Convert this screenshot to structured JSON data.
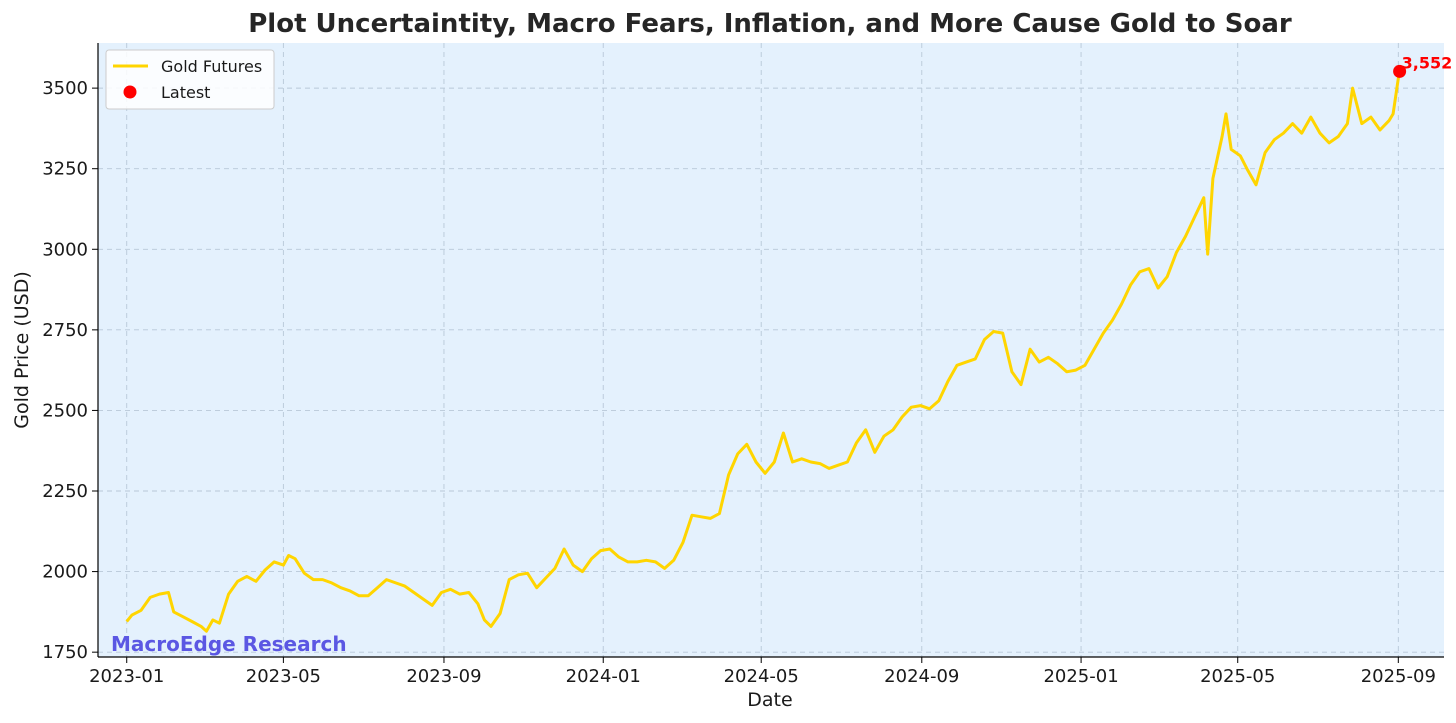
{
  "chart_data": {
    "type": "line",
    "title": "Plot Uncertaintity, Macro Fears, Inflation, and More Cause Gold to Soar",
    "xlabel": "Date",
    "ylabel": "Gold Price (USD)",
    "x_ticks": [
      "2023-01",
      "2023-05",
      "2023-09",
      "2024-01",
      "2024-05",
      "2024-09",
      "2025-01",
      "2025-05",
      "2025-09"
    ],
    "y_ticks": [
      1750,
      2000,
      2250,
      2500,
      2750,
      3000,
      3250,
      3500
    ],
    "xlim": [
      "2022-12-10",
      "2025-10-06"
    ],
    "ylim": [
      1735,
      3640
    ],
    "grid": true,
    "legend_position": "top-left",
    "watermark": "MacroEdge Research",
    "series": [
      {
        "name": "Gold Futures",
        "color": "#FFD500",
        "points": [
          [
            "2023-01-01",
            1845
          ],
          [
            "2023-01-05",
            1865
          ],
          [
            "2023-01-12",
            1880
          ],
          [
            "2023-01-19",
            1920
          ],
          [
            "2023-01-26",
            1930
          ],
          [
            "2023-02-02",
            1935
          ],
          [
            "2023-02-06",
            1875
          ],
          [
            "2023-02-13",
            1860
          ],
          [
            "2023-02-20",
            1845
          ],
          [
            "2023-02-27",
            1830
          ],
          [
            "2023-03-03",
            1815
          ],
          [
            "2023-03-08",
            1850
          ],
          [
            "2023-03-13",
            1840
          ],
          [
            "2023-03-20",
            1930
          ],
          [
            "2023-03-27",
            1970
          ],
          [
            "2023-04-03",
            1985
          ],
          [
            "2023-04-10",
            1970
          ],
          [
            "2023-04-17",
            2005
          ],
          [
            "2023-04-24",
            2030
          ],
          [
            "2023-05-01",
            2020
          ],
          [
            "2023-05-05",
            2050
          ],
          [
            "2023-05-10",
            2040
          ],
          [
            "2023-05-17",
            1995
          ],
          [
            "2023-05-24",
            1975
          ],
          [
            "2023-05-31",
            1975
          ],
          [
            "2023-06-07",
            1965
          ],
          [
            "2023-06-14",
            1950
          ],
          [
            "2023-06-21",
            1940
          ],
          [
            "2023-06-28",
            1925
          ],
          [
            "2023-07-05",
            1925
          ],
          [
            "2023-07-12",
            1950
          ],
          [
            "2023-07-19",
            1975
          ],
          [
            "2023-07-26",
            1965
          ],
          [
            "2023-08-02",
            1955
          ],
          [
            "2023-08-09",
            1935
          ],
          [
            "2023-08-16",
            1915
          ],
          [
            "2023-08-23",
            1895
          ],
          [
            "2023-08-30",
            1935
          ],
          [
            "2023-09-06",
            1945
          ],
          [
            "2023-09-13",
            1930
          ],
          [
            "2023-09-20",
            1935
          ],
          [
            "2023-09-27",
            1900
          ],
          [
            "2023-10-02",
            1850
          ],
          [
            "2023-10-07",
            1830
          ],
          [
            "2023-10-14",
            1870
          ],
          [
            "2023-10-21",
            1975
          ],
          [
            "2023-10-28",
            1990
          ],
          [
            "2023-11-04",
            1995
          ],
          [
            "2023-11-11",
            1950
          ],
          [
            "2023-11-18",
            1980
          ],
          [
            "2023-11-25",
            2010
          ],
          [
            "2023-12-02",
            2070
          ],
          [
            "2023-12-09",
            2020
          ],
          [
            "2023-12-16",
            2000
          ],
          [
            "2023-12-23",
            2040
          ],
          [
            "2023-12-30",
            2065
          ],
          [
            "2024-01-06",
            2070
          ],
          [
            "2024-01-13",
            2045
          ],
          [
            "2024-01-20",
            2030
          ],
          [
            "2024-01-27",
            2030
          ],
          [
            "2024-02-03",
            2035
          ],
          [
            "2024-02-10",
            2030
          ],
          [
            "2024-02-17",
            2010
          ],
          [
            "2024-02-24",
            2035
          ],
          [
            "2024-03-02",
            2090
          ],
          [
            "2024-03-09",
            2175
          ],
          [
            "2024-03-16",
            2170
          ],
          [
            "2024-03-23",
            2165
          ],
          [
            "2024-03-30",
            2180
          ],
          [
            "2024-04-06",
            2300
          ],
          [
            "2024-04-13",
            2365
          ],
          [
            "2024-04-20",
            2395
          ],
          [
            "2024-04-27",
            2340
          ],
          [
            "2024-05-04",
            2305
          ],
          [
            "2024-05-11",
            2340
          ],
          [
            "2024-05-18",
            2430
          ],
          [
            "2024-05-25",
            2340
          ],
          [
            "2024-06-01",
            2350
          ],
          [
            "2024-06-08",
            2340
          ],
          [
            "2024-06-15",
            2335
          ],
          [
            "2024-06-22",
            2320
          ],
          [
            "2024-06-29",
            2330
          ],
          [
            "2024-07-06",
            2340
          ],
          [
            "2024-07-13",
            2400
          ],
          [
            "2024-07-20",
            2440
          ],
          [
            "2024-07-27",
            2370
          ],
          [
            "2024-08-03",
            2420
          ],
          [
            "2024-08-10",
            2440
          ],
          [
            "2024-08-17",
            2480
          ],
          [
            "2024-08-24",
            2510
          ],
          [
            "2024-08-31",
            2515
          ],
          [
            "2024-09-07",
            2505
          ],
          [
            "2024-09-14",
            2530
          ],
          [
            "2024-09-21",
            2590
          ],
          [
            "2024-09-28",
            2640
          ],
          [
            "2024-10-05",
            2650
          ],
          [
            "2024-10-12",
            2660
          ],
          [
            "2024-10-19",
            2720
          ],
          [
            "2024-10-26",
            2745
          ],
          [
            "2024-11-02",
            2740
          ],
          [
            "2024-11-09",
            2620
          ],
          [
            "2024-11-16",
            2580
          ],
          [
            "2024-11-23",
            2690
          ],
          [
            "2024-11-30",
            2650
          ],
          [
            "2024-12-07",
            2665
          ],
          [
            "2024-12-14",
            2645
          ],
          [
            "2024-12-21",
            2620
          ],
          [
            "2024-12-28",
            2625
          ],
          [
            "2025-01-04",
            2640
          ],
          [
            "2025-01-11",
            2690
          ],
          [
            "2025-01-18",
            2740
          ],
          [
            "2025-01-25",
            2780
          ],
          [
            "2025-02-01",
            2830
          ],
          [
            "2025-02-08",
            2890
          ],
          [
            "2025-02-15",
            2930
          ],
          [
            "2025-02-22",
            2940
          ],
          [
            "2025-03-01",
            2880
          ],
          [
            "2025-03-08",
            2915
          ],
          [
            "2025-03-15",
            2990
          ],
          [
            "2025-03-22",
            3040
          ],
          [
            "2025-03-29",
            3100
          ],
          [
            "2025-04-05",
            3160
          ],
          [
            "2025-04-08",
            2985
          ],
          [
            "2025-04-12",
            3220
          ],
          [
            "2025-04-19",
            3350
          ],
          [
            "2025-04-22",
            3420
          ],
          [
            "2025-04-26",
            3310
          ],
          [
            "2025-05-03",
            3290
          ],
          [
            "2025-05-08",
            3250
          ],
          [
            "2025-05-15",
            3200
          ],
          [
            "2025-05-22",
            3300
          ],
          [
            "2025-05-29",
            3340
          ],
          [
            "2025-06-05",
            3360
          ],
          [
            "2025-06-12",
            3390
          ],
          [
            "2025-06-19",
            3360
          ],
          [
            "2025-06-26",
            3410
          ],
          [
            "2025-07-03",
            3360
          ],
          [
            "2025-07-10",
            3330
          ],
          [
            "2025-07-17",
            3350
          ],
          [
            "2025-07-24",
            3390
          ],
          [
            "2025-07-28",
            3500
          ],
          [
            "2025-08-04",
            3390
          ],
          [
            "2025-08-11",
            3410
          ],
          [
            "2025-08-18",
            3370
          ],
          [
            "2025-08-25",
            3400
          ],
          [
            "2025-08-28",
            3420
          ],
          [
            "2025-09-01",
            3530
          ],
          [
            "2025-09-02",
            3552
          ]
        ]
      }
    ],
    "latest": {
      "name": "Latest",
      "date": "2025-09-02",
      "value": 3552,
      "label": "3,552",
      "color": "#FF0000"
    },
    "colors": {
      "plot_background": "#E4F1FD",
      "grid": "#B8C8D8",
      "watermark": "#5B57E3",
      "axis": "#000000"
    }
  }
}
